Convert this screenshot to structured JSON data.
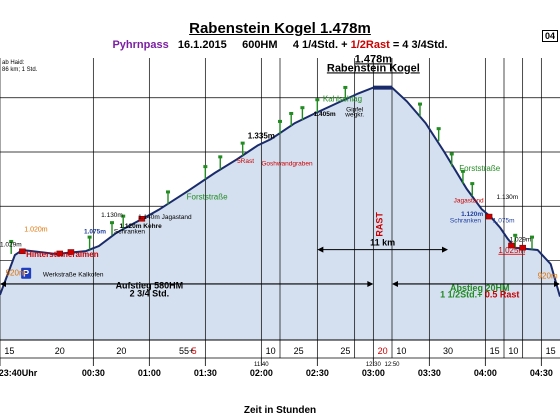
{
  "header": {
    "title": "Rabenstein Kogel 1.478m",
    "route": "Pyhrnpass",
    "date": "16.1.2015",
    "ascent": "600HM",
    "time_a": "4 1/4Std. +",
    "rest": "1/2Rast",
    "time_b": "= 4 3/4Std.",
    "page": "04",
    "note_line1": "ab Haid:",
    "note_line2": "86 km; 1 Std."
  },
  "colors": {
    "route": "#7b1fa2",
    "fill": "#d4e0f0",
    "line": "#1a2b6b",
    "red": "#cc0000",
    "green": "#228b22",
    "orange": "#e07000",
    "blue": "#1f3f9f"
  },
  "chart_data": {
    "type": "area",
    "title": "Rabenstein Kogel 1.478m",
    "xlabel": "Zeit in Stunden",
    "ylabel": "",
    "x_unit": "minutes",
    "xlim": [
      -20,
      280
    ],
    "ylim": [
      780,
      1560
    ],
    "grid": true,
    "x_ticks": [
      {
        "x": -20,
        "label": "23:40Uhr"
      },
      {
        "x": 30,
        "label": "00:30"
      },
      {
        "x": 60,
        "label": "01:00"
      },
      {
        "x": 90,
        "label": "01:30"
      },
      {
        "x": 120,
        "label": "02:00"
      },
      {
        "x": 150,
        "label": "02:30"
      },
      {
        "x": 180,
        "label": "03:00"
      },
      {
        "x": 210,
        "label": "03:30"
      },
      {
        "x": 240,
        "label": "04:00"
      },
      {
        "x": 270,
        "label": "04:30"
      }
    ],
    "gridlines_x": [
      -20,
      30,
      60,
      90,
      120,
      130,
      150,
      170,
      180,
      190,
      210,
      240,
      250,
      260,
      270
    ],
    "gridlines_y": [
      1000,
      1150,
      1300,
      1450
    ],
    "profile": [
      {
        "x": -20,
        "y": 905
      },
      {
        "x": -12,
        "y": 1015
      },
      {
        "x": -8,
        "y": 1029
      },
      {
        "x": 0,
        "y": 1024
      },
      {
        "x": 10,
        "y": 1018
      },
      {
        "x": 18,
        "y": 1022
      },
      {
        "x": 26,
        "y": 1026
      },
      {
        "x": 33,
        "y": 1040
      },
      {
        "x": 42,
        "y": 1075
      },
      {
        "x": 50,
        "y": 1098
      },
      {
        "x": 58,
        "y": 1120
      },
      {
        "x": 65,
        "y": 1140
      },
      {
        "x": 80,
        "y": 1190
      },
      {
        "x": 95,
        "y": 1242
      },
      {
        "x": 107,
        "y": 1280
      },
      {
        "x": 118,
        "y": 1318
      },
      {
        "x": 125,
        "y": 1335
      },
      {
        "x": 138,
        "y": 1380
      },
      {
        "x": 148,
        "y": 1405
      },
      {
        "x": 160,
        "y": 1434
      },
      {
        "x": 172,
        "y": 1462
      },
      {
        "x": 180,
        "y": 1478
      },
      {
        "x": 190,
        "y": 1478
      },
      {
        "x": 198,
        "y": 1440
      },
      {
        "x": 208,
        "y": 1380
      },
      {
        "x": 218,
        "y": 1300
      },
      {
        "x": 230,
        "y": 1198
      },
      {
        "x": 238,
        "y": 1142
      },
      {
        "x": 243,
        "y": 1120
      },
      {
        "x": 248,
        "y": 1090
      },
      {
        "x": 252,
        "y": 1060
      },
      {
        "x": 256,
        "y": 1035
      },
      {
        "x": 262,
        "y": 1032
      },
      {
        "x": 268,
        "y": 1029
      },
      {
        "x": 275,
        "y": 990
      },
      {
        "x": 280,
        "y": 900
      }
    ],
    "trees": [
      {
        "x": -14,
        "y": 1018
      },
      {
        "x": 28,
        "y": 1030
      },
      {
        "x": 40,
        "y": 1070
      },
      {
        "x": 46,
        "y": 1088
      },
      {
        "x": 70,
        "y": 1155
      },
      {
        "x": 90,
        "y": 1225
      },
      {
        "x": 98,
        "y": 1252
      },
      {
        "x": 110,
        "y": 1290
      },
      {
        "x": 130,
        "y": 1350
      },
      {
        "x": 136,
        "y": 1372
      },
      {
        "x": 142,
        "y": 1388
      },
      {
        "x": 150,
        "y": 1410
      },
      {
        "x": 165,
        "y": 1444
      },
      {
        "x": 205,
        "y": 1398
      },
      {
        "x": 215,
        "y": 1330
      },
      {
        "x": 222,
        "y": 1260
      },
      {
        "x": 228,
        "y": 1212
      },
      {
        "x": 233,
        "y": 1178
      },
      {
        "x": 256,
        "y": 1035
      },
      {
        "x": 265,
        "y": 1030
      }
    ],
    "markers": [
      {
        "x": -8,
        "y": 1024,
        "color": "#cc0000"
      },
      {
        "x": 12,
        "y": 1018,
        "color": "#cc0000"
      },
      {
        "x": 18,
        "y": 1022,
        "color": "#cc0000"
      },
      {
        "x": 56,
        "y": 1114,
        "color": "#cc0000"
      },
      {
        "x": 242,
        "y": 1120,
        "color": "#cc0000"
      },
      {
        "x": 254,
        "y": 1040,
        "color": "#cc0000"
      },
      {
        "x": 260,
        "y": 1034,
        "color": "#cc0000"
      }
    ],
    "phase_arrows": [
      {
        "x1": -20,
        "x2": 180,
        "y": 935
      },
      {
        "x1": 190,
        "x2": 280,
        "y": 935
      }
    ],
    "distance_arrow": {
      "x1": 150,
      "x2": 220,
      "y": 1030,
      "label": "11 km"
    },
    "bottom_labels": [
      {
        "x": -15,
        "text": "15",
        "color": "#000000"
      },
      {
        "x": 12,
        "text": "20",
        "color": "#000000"
      },
      {
        "x": 45,
        "text": "20",
        "color": "#000000"
      },
      {
        "x": 80,
        "text": "55+",
        "color": "#000000"
      },
      {
        "x": 84,
        "text": "5",
        "color": "#cc0000"
      },
      {
        "x": 125,
        "text": "10",
        "color": "#000000"
      },
      {
        "x": 140,
        "text": "25",
        "color": "#000000"
      },
      {
        "x": 165,
        "text": "25",
        "color": "#000000"
      },
      {
        "x": 185,
        "text": "20",
        "color": "#cc0000"
      },
      {
        "x": 195,
        "text": "10",
        "color": "#000000"
      },
      {
        "x": 220,
        "text": "30",
        "color": "#000000"
      },
      {
        "x": 245,
        "text": "15",
        "color": "#000000"
      },
      {
        "x": 255,
        "text": "10",
        "color": "#000000"
      },
      {
        "x": 275,
        "text": "15",
        "color": "#000000"
      }
    ],
    "extra_time_labels": [
      {
        "x": 120,
        "text": "11:40"
      },
      {
        "x": 180,
        "text": "12:30"
      },
      {
        "x": 190,
        "text": "12:50"
      }
    ],
    "annotations": [
      {
        "x": 180,
        "y": 1548,
        "text": "1.478m",
        "size": 11,
        "bold": true,
        "underline": true,
        "anchor": "middle",
        "color": "#000000"
      },
      {
        "x": 180,
        "y": 1523,
        "text": "Rabenstein Kogel",
        "size": 11,
        "bold": true,
        "underline": true,
        "anchor": "middle",
        "color": "#000000"
      },
      {
        "x": 120,
        "y": 1338,
        "text": "1.335m",
        "size": 8,
        "bold": true,
        "anchor": "middle",
        "color": "#000000"
      },
      {
        "x": 148,
        "y": 1400,
        "text": "1.405m",
        "size": 6.5,
        "bold": true,
        "anchor": "start",
        "color": "#000000"
      },
      {
        "x": 153,
        "y": 1440,
        "text": "Kahlschlag",
        "size": 8,
        "anchor": "start",
        "color": "#228b22"
      },
      {
        "x": 170,
        "y": 1412,
        "text": "Gipfel",
        "size": 6.5,
        "anchor": "middle",
        "color": "#000000"
      },
      {
        "x": 170,
        "y": 1398,
        "text": "wegkr.",
        "size": 6.5,
        "anchor": "middle",
        "color": "#000000"
      },
      {
        "x": 107,
        "y": 1270,
        "text": "5Rast",
        "size": 6.5,
        "anchor": "start",
        "color": "#cc0000"
      },
      {
        "x": 120,
        "y": 1262,
        "text": "Goshwandgraben",
        "size": 6.5,
        "anchor": "start",
        "color": "#cc0000"
      },
      {
        "x": 80,
        "y": 1168,
        "text": "Forststraße",
        "size": 8,
        "anchor": "start",
        "color": "#228b22"
      },
      {
        "x": 54,
        "y": 1115,
        "text": "1.140m Jagastand",
        "size": 6.5,
        "anchor": "start",
        "color": "#000000"
      },
      {
        "x": 40,
        "y": 1120,
        "text": "1.130m",
        "size": 6.5,
        "anchor": "middle",
        "color": "#000000"
      },
      {
        "x": 44,
        "y": 1090,
        "text": "1.120m Kehre",
        "size": 6.5,
        "bold": true,
        "anchor": "start",
        "color": "#000000"
      },
      {
        "x": 25,
        "y": 1074,
        "text": "1.075m",
        "size": 6.5,
        "bold": true,
        "anchor": "start",
        "color": "#1f3f9f"
      },
      {
        "x": 41,
        "y": 1074,
        "text": "Schranken",
        "size": 6.5,
        "anchor": "start",
        "color": "#000000"
      },
      {
        "x": -7,
        "y": 1080,
        "text": "1.020m",
        "size": 7,
        "anchor": "start",
        "color": "#e07000"
      },
      {
        "x": -6,
        "y": 1010,
        "text": "Hintersteineralmen",
        "size": 8,
        "bold": true,
        "anchor": "start",
        "color": "#cc0000"
      },
      {
        "x": -20,
        "y": 1038,
        "text": "1.029m",
        "size": 6.5,
        "anchor": "start",
        "color": "#000000"
      },
      {
        "x": -17,
        "y": 958,
        "text": "920m",
        "size": 8,
        "anchor": "start",
        "color": "#e07000"
      },
      {
        "x": 3,
        "y": 955,
        "text": "Werkstraße Kalkofen",
        "size": 6.5,
        "anchor": "start",
        "color": "#000000"
      },
      {
        "x": 60,
        "y": 922,
        "text": "Aufstieg 580HM",
        "size": 9,
        "bold": true,
        "anchor": "middle",
        "color": "#000000"
      },
      {
        "x": 60,
        "y": 900,
        "text": "2 3/4 Std.",
        "size": 9,
        "bold": true,
        "anchor": "middle",
        "color": "#000000"
      },
      {
        "x": 185,
        "y": 1100,
        "text": "RAST",
        "size": 9,
        "bold": true,
        "anchor": "middle",
        "color": "#cc0000",
        "rotate": true
      },
      {
        "x": 237,
        "y": 1248,
        "text": "Forststraße",
        "size": 8,
        "anchor": "middle",
        "color": "#228b22"
      },
      {
        "x": 223,
        "y": 1160,
        "text": "Jagastand",
        "size": 6.5,
        "anchor": "start",
        "color": "#cc0000"
      },
      {
        "x": 246,
        "y": 1170,
        "text": "1.130m",
        "size": 6.5,
        "anchor": "start",
        "color": "#000000"
      },
      {
        "x": 227,
        "y": 1123,
        "text": "1.120m",
        "size": 6.5,
        "bold": true,
        "anchor": "start",
        "color": "#1f3f9f"
      },
      {
        "x": 221,
        "y": 1105,
        "text": "Schranken",
        "size": 6.5,
        "anchor": "start",
        "color": "#1f3f9f"
      },
      {
        "x": 244,
        "y": 1105,
        "text": "1.075m",
        "size": 6.5,
        "anchor": "start",
        "color": "#1f3f9f"
      },
      {
        "x": 253,
        "y": 1052,
        "text": "1.029m",
        "size": 6.5,
        "anchor": "start",
        "color": "#000000"
      },
      {
        "x": 247,
        "y": 1021,
        "text": "1.025m",
        "size": 8,
        "underline": true,
        "anchor": "start",
        "color": "#cc0000"
      },
      {
        "x": 268,
        "y": 950,
        "text": "920m",
        "size": 8,
        "anchor": "start",
        "color": "#e07000"
      },
      {
        "x": 237,
        "y": 916,
        "text": "Abstieg 20HM",
        "size": 9,
        "bold": true,
        "anchor": "middle",
        "color": "#228b22"
      }
    ],
    "abstieg_time": {
      "x": 237,
      "y": 898,
      "a": "1 1/2Std.+ ",
      "b": "0.5 Rast"
    }
  }
}
